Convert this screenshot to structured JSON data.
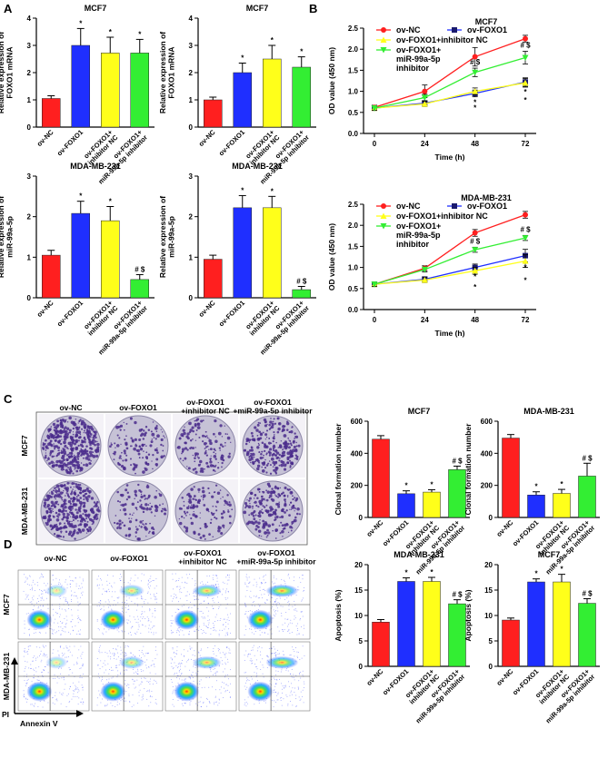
{
  "panels": {
    "a": "A",
    "b": "B",
    "c": "C",
    "d": "D"
  },
  "colors": {
    "red": "#ff1f1f",
    "blue": "#1f2fff",
    "yellow": "#ffff1a",
    "green": "#33ee33",
    "black": "#000000",
    "navy": "#1a1a6e",
    "dish": "#c6c2d6",
    "colony": "#4a2c8c"
  },
  "chart_data": [
    {
      "id": "a1",
      "type": "bar",
      "title": "MCF7",
      "ylabel": "Relative expression of FOXO1 mRNA",
      "ylim": [
        0,
        4
      ],
      "yticks": [
        "0",
        "1",
        "2",
        "3",
        "4"
      ],
      "categories": [
        "ov-NC",
        "ov-FOXO1",
        "ov-FOXO1+ inhibitor NC",
        "ov-FOXO1+ miR-99a-5p inhibitor"
      ],
      "values": [
        1.05,
        3.0,
        2.72,
        2.72
      ],
      "errors": [
        0.1,
        0.62,
        0.58,
        0.5
      ],
      "annotations": [
        "",
        "*",
        "*",
        "*"
      ]
    },
    {
      "id": "a2",
      "type": "bar",
      "title": "MCF7",
      "ylabel": "Relative expression of FOXO1 mRNA",
      "ylim": [
        0,
        4
      ],
      "yticks": [
        "0",
        "1",
        "2",
        "3",
        "4"
      ],
      "categories": [
        "ov-NC",
        "ov-FOXO1",
        "ov-FOXO1+ inhibitor NC",
        "ov-FOXO1+ miR-99a-5p inhibitor"
      ],
      "values": [
        1.0,
        2.0,
        2.5,
        2.2
      ],
      "errors": [
        0.1,
        0.35,
        0.5,
        0.38
      ],
      "annotations": [
        "",
        "*",
        "*",
        "*"
      ]
    },
    {
      "id": "a3",
      "type": "bar",
      "title": "MDA-MB-231",
      "ylabel": "Relative expression of miR-99a-5p",
      "ylim": [
        0,
        3
      ],
      "yticks": [
        "0",
        "1",
        "2",
        "3"
      ],
      "categories": [
        "ov-NC",
        "ov-FOXO1",
        "ov-FOXO1+ inhibitor NC",
        "ov-FOXO1+ miR-99a-5p inhibitor"
      ],
      "values": [
        1.05,
        2.08,
        1.9,
        0.45
      ],
      "errors": [
        0.12,
        0.3,
        0.35,
        0.12
      ],
      "annotations": [
        "",
        "*",
        "*",
        "# $"
      ]
    },
    {
      "id": "a4",
      "type": "bar",
      "title": "MDA-MB-231",
      "ylabel": "Relative expression of miR-99a-5p",
      "ylim": [
        0,
        3
      ],
      "yticks": [
        "0",
        "1",
        "2",
        "3"
      ],
      "categories": [
        "ov-NC",
        "ov-FOXO1",
        "ov-FOXO1+ inhibitor NC",
        "ov-FOXO1+ miR-99a-5p inhibitor"
      ],
      "values": [
        0.95,
        2.22,
        2.22,
        0.2
      ],
      "errors": [
        0.1,
        0.3,
        0.28,
        0.08
      ],
      "annotations": [
        "",
        "*",
        "*",
        "# $"
      ]
    },
    {
      "id": "b1",
      "type": "line",
      "title": "MCF7",
      "xlabel": "Time (h)",
      "ylabel": "OD value (450 nm)",
      "x": [
        0,
        24,
        48,
        72
      ],
      "xticks": [
        "0",
        "24",
        "48",
        "72"
      ],
      "ylim": [
        0,
        2.5
      ],
      "yticks": [
        "0.0",
        "0.5",
        "1.0",
        "1.5",
        "2.0",
        "2.5"
      ],
      "series": [
        {
          "name": "ov-NC",
          "values": [
            0.62,
            1.0,
            1.82,
            2.25
          ],
          "errors": [
            0.05,
            0.15,
            0.22,
            0.08
          ],
          "labels": [
            "",
            "",
            "",
            ""
          ]
        },
        {
          "name": "ov-FOXO1",
          "values": [
            0.6,
            0.72,
            0.95,
            1.22
          ],
          "errors": [
            0.05,
            0.06,
            0.08,
            0.1
          ],
          "labels": [
            "",
            "",
            "*",
            "*"
          ]
        },
        {
          "name": "ov-FOXO1+inhibitor NC",
          "values": [
            0.6,
            0.7,
            1.0,
            1.2
          ],
          "errors": [
            0.05,
            0.06,
            0.08,
            0.1
          ],
          "labels": [
            "",
            "",
            "*",
            "*"
          ]
        },
        {
          "name": "ov-FOXO1+ miR-99a-5p inhibitor",
          "values": [
            0.6,
            0.85,
            1.45,
            1.8
          ],
          "errors": [
            0.05,
            0.08,
            0.1,
            0.15
          ],
          "labels": [
            "",
            "",
            "# $",
            "# $"
          ]
        }
      ]
    },
    {
      "id": "b2",
      "type": "line",
      "title": "MDA-MB-231",
      "xlabel": "Time (h)",
      "ylabel": "OD value (450 nm)",
      "x": [
        0,
        24,
        48,
        72
      ],
      "xticks": [
        "0",
        "24",
        "48",
        "72"
      ],
      "ylim": [
        0,
        2.5
      ],
      "yticks": [
        "0.0",
        "0.5",
        "1.0",
        "1.5",
        "2.0",
        "2.5"
      ],
      "series": [
        {
          "name": "ov-NC",
          "values": [
            0.6,
            0.98,
            1.82,
            2.25
          ],
          "errors": [
            0.05,
            0.06,
            0.08,
            0.08
          ],
          "labels": [
            "",
            "",
            "",
            ""
          ]
        },
        {
          "name": "ov-FOXO1",
          "values": [
            0.6,
            0.72,
            1.0,
            1.28
          ],
          "errors": [
            0.05,
            0.06,
            0.08,
            0.15
          ],
          "labels": [
            "",
            "",
            "*",
            "*"
          ]
        },
        {
          "name": "ov-FOXO1+inhibitor NC",
          "values": [
            0.6,
            0.7,
            0.92,
            1.15
          ],
          "errors": [
            0.05,
            0.06,
            0.08,
            0.15
          ],
          "labels": [
            "",
            "",
            "*",
            "*"
          ]
        },
        {
          "name": "ov-FOXO1+ miR-99a-5p inhibitor",
          "values": [
            0.6,
            0.95,
            1.42,
            1.7
          ],
          "errors": [
            0.05,
            0.06,
            0.06,
            0.06
          ],
          "labels": [
            "",
            "",
            "# $",
            "# $"
          ]
        }
      ]
    },
    {
      "id": "c1",
      "type": "bar",
      "title": "MCF7",
      "ylabel": "Clonal formation number",
      "ylim": [
        0,
        600
      ],
      "yticks": [
        "0",
        "200",
        "400",
        "600"
      ],
      "categories": [
        "ov-NC",
        "ov-FOXO1",
        "ov-FOXO1+ inhibitor NC",
        "ov-FOXO1+ miR-99a-5p inhibitor"
      ],
      "values": [
        488,
        148,
        158,
        298
      ],
      "errors": [
        22,
        18,
        15,
        22
      ],
      "annotations": [
        "",
        "*",
        "*",
        "# $"
      ]
    },
    {
      "id": "c2",
      "type": "bar",
      "title": "MDA-MB-231",
      "ylabel": "Clonal formation number",
      "ylim": [
        0,
        600
      ],
      "yticks": [
        "0",
        "200",
        "400",
        "600"
      ],
      "categories": [
        "ov-NC",
        "ov-FOXO1",
        "ov-FOXO1+ inhibitor NC",
        "ov-FOXO1+ miR-99a-5p inhibitor"
      ],
      "values": [
        495,
        140,
        150,
        258
      ],
      "errors": [
        22,
        20,
        25,
        80
      ],
      "annotations": [
        "",
        "*",
        "*",
        "# $"
      ]
    },
    {
      "id": "d1",
      "type": "bar",
      "title": "MDA-MB-231",
      "ylabel": "Apoptosis (%)",
      "ylim": [
        0,
        20
      ],
      "yticks": [
        "0",
        "5",
        "10",
        "15",
        "20"
      ],
      "categories": [
        "ov-NC",
        "ov-FOXO1",
        "ov-FOXO1+ inhibitor NC",
        "ov-FOXO1+ miR-99a-5p inhibitor"
      ],
      "values": [
        8.7,
        16.7,
        16.7,
        12.3
      ],
      "errors": [
        0.5,
        0.7,
        0.8,
        0.8
      ],
      "annotations": [
        "",
        "*",
        "*",
        "# $"
      ]
    },
    {
      "id": "d2",
      "type": "bar",
      "title": "MCF7",
      "ylabel": "Apoptosis (%)",
      "ylim": [
        0,
        20
      ],
      "yticks": [
        "0",
        "5",
        "10",
        "15",
        "20"
      ],
      "categories": [
        "ov-NC",
        "ov-FOXO1",
        "ov-FOXO1+ inhibitor NC",
        "ov-FOXO1+ miR-99a-5p inhibitor"
      ],
      "values": [
        9.1,
        16.6,
        16.6,
        12.4
      ],
      "errors": [
        0.4,
        0.6,
        1.5,
        0.9
      ],
      "annotations": [
        "",
        "*",
        "*",
        "# $"
      ]
    }
  ],
  "colony_panel": {
    "columns": [
      "ov-NC",
      "ov-FOXO1",
      "ov-FOXO1 +inhibitor NC",
      "ov-FOXO1 +miR-99a-5p inhibitor"
    ],
    "rows": [
      "MCF7",
      "MDA-MB-231"
    ],
    "density": [
      [
        1.0,
        0.32,
        0.34,
        0.6
      ],
      [
        0.9,
        0.28,
        0.3,
        0.5
      ]
    ]
  },
  "flow_panel": {
    "columns": [
      "ov-NC",
      "ov-FOXO1",
      "ov-FOXO1 +inhibitor NC",
      "ov-FOXO1 +miR-99a-5p inhibitor"
    ],
    "rows": [
      "MCF7",
      "MDA-MB-231"
    ],
    "y_axis": "PI",
    "x_axis": "Annexin V"
  }
}
